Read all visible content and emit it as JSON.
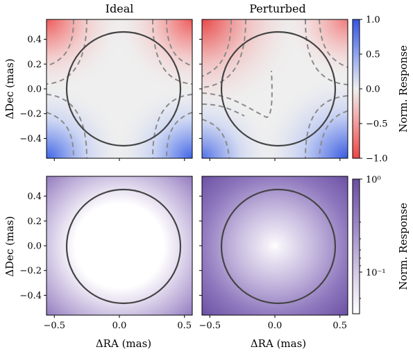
{
  "chart_data": [
    {
      "type": "heatmap",
      "title": "Ideal",
      "xlabel": "",
      "ylabel": "ΔDec (mas)",
      "xlim": [
        -0.56,
        0.56
      ],
      "ylim": [
        -0.56,
        0.56
      ],
      "colormap": "bwr",
      "clim": [
        -1.0,
        1.0
      ],
      "circle_radius": 0.46,
      "contours": "dashed"
    },
    {
      "type": "heatmap",
      "title": "Perturbed",
      "xlabel": "",
      "ylabel": "",
      "xlim": [
        -0.56,
        0.56
      ],
      "ylim": [
        -0.56,
        0.56
      ],
      "colormap": "bwr",
      "clim": [
        -1.0,
        1.0
      ],
      "circle_radius": 0.46,
      "contours": "dashed"
    },
    {
      "type": "heatmap",
      "title": "",
      "xlabel": "ΔRA (mas)",
      "ylabel": "ΔDec (mas)",
      "xlim": [
        -0.56,
        0.56
      ],
      "ylim": [
        -0.56,
        0.56
      ],
      "colormap": "purples",
      "scale": "log",
      "circle_radius": 0.46
    },
    {
      "type": "heatmap",
      "title": "",
      "xlabel": "ΔRA (mas)",
      "ylabel": "",
      "xlim": [
        -0.56,
        0.56
      ],
      "ylim": [
        -0.56,
        0.56
      ],
      "colormap": "purples",
      "scale": "log",
      "circle_radius": 0.46
    }
  ],
  "ticks": {
    "x": [
      "−0.5",
      "0.0",
      "0.5"
    ],
    "x_values": [
      -0.5,
      0.0,
      0.5
    ],
    "y": [
      "0.4",
      "0.2",
      "0.0",
      "−0.2",
      "−0.4"
    ],
    "y_values": [
      0.4,
      0.2,
      0.0,
      -0.2,
      -0.4
    ]
  },
  "colorbars": {
    "top": {
      "label": "Norm. Response",
      "ticks": [
        "1.0",
        "0.5",
        "0.0",
        "−0.5",
        "−1.0"
      ],
      "tick_values": [
        1.0,
        0.5,
        0.0,
        -0.5,
        -1.0
      ],
      "range": [
        -1.0,
        1.0
      ]
    },
    "bottom": {
      "label": "Norm. Response",
      "ticks": [
        "10⁰",
        "10⁻¹"
      ],
      "scale": "log"
    }
  },
  "colors": {
    "positive": "#3a5fe0",
    "negative": "#f05050",
    "neutral": "#efefef",
    "purple_dark": "#6a4ea2",
    "circle": "#444444",
    "contour": "#8a8a8a"
  }
}
